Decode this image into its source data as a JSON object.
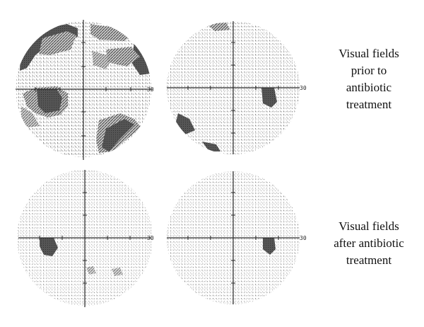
{
  "captions": {
    "prior": [
      "Visual fields",
      "prior to",
      "antibiotic",
      "treatment"
    ],
    "after": [
      "Visual fields",
      "after antibiotic",
      "treatment"
    ]
  },
  "axis_label": "30",
  "fields": [
    {
      "id": "prior-left",
      "label": "30"
    },
    {
      "id": "prior-right",
      "label": "30"
    },
    {
      "id": "after-left",
      "label": "30"
    },
    {
      "id": "after-right",
      "label": "30"
    }
  ],
  "colors": {
    "ink": "#2a2a2a",
    "dot": "#7a7a7a",
    "defect": "#555555",
    "light": "#b0b0b0"
  }
}
